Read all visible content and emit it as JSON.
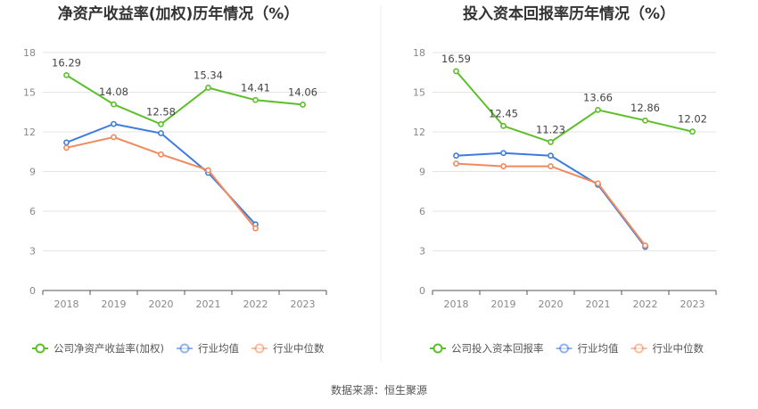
{
  "chart_data": [
    {
      "type": "line",
      "title": "净资产收益率(加权)历年情况（%）",
      "categories": [
        "2018",
        "2019",
        "2020",
        "2021",
        "2022",
        "2023"
      ],
      "ylim": [
        0,
        18
      ],
      "yticks": [
        0,
        3,
        6,
        9,
        12,
        15,
        18
      ],
      "grid": true,
      "legend_position": "bottom",
      "series": [
        {
          "name": "公司净资产收益率(加权)",
          "color": "#5cbf2a",
          "values": [
            16.29,
            14.08,
            12.58,
            15.34,
            14.41,
            14.06
          ],
          "labels": [
            "16.29",
            "14.08",
            "12.58",
            "15.34",
            "14.41",
            "14.06"
          ]
        },
        {
          "name": "行业均值",
          "color": "#3d7be0",
          "values": [
            11.2,
            12.6,
            11.9,
            8.9,
            5.0,
            null
          ]
        },
        {
          "name": "行业中位数",
          "color": "#f08a5d",
          "values": [
            10.8,
            11.6,
            10.3,
            9.1,
            4.7,
            null
          ]
        }
      ]
    },
    {
      "type": "line",
      "title": "投入资本回报率历年情况（%）",
      "categories": [
        "2018",
        "2019",
        "2020",
        "2021",
        "2022",
        "2023"
      ],
      "ylim": [
        0,
        18
      ],
      "yticks": [
        0,
        3,
        6,
        9,
        12,
        15,
        18
      ],
      "grid": true,
      "legend_position": "bottom",
      "series": [
        {
          "name": "公司投入资本回报率",
          "color": "#5cbf2a",
          "values": [
            16.59,
            12.45,
            11.23,
            13.66,
            12.86,
            12.02
          ],
          "labels": [
            "16.59",
            "12.45",
            "11.23",
            "13.66",
            "12.86",
            "12.02"
          ]
        },
        {
          "name": "行业均值",
          "color": "#3d7be0",
          "values": [
            10.2,
            10.4,
            10.2,
            8.0,
            3.3,
            null
          ]
        },
        {
          "name": "行业中位数",
          "color": "#f08a5d",
          "values": [
            9.6,
            9.4,
            9.4,
            8.1,
            3.4,
            null
          ]
        }
      ]
    }
  ],
  "source": "数据来源：恒生聚源"
}
